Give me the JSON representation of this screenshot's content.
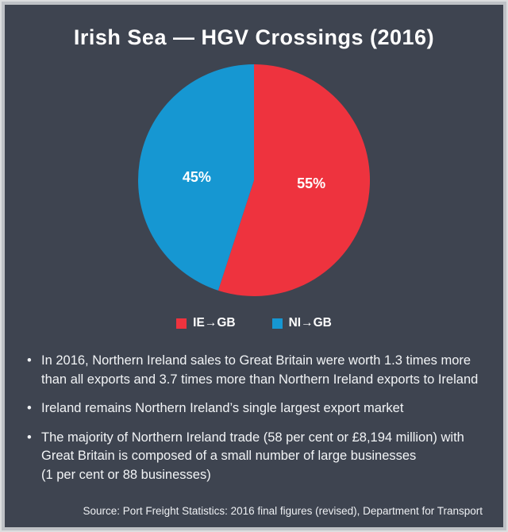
{
  "colors": {
    "background": "#3e4450",
    "frame_border": "#bfc2c6",
    "text": "#ffffff",
    "red": "#ee333e",
    "blue": "#1697d2"
  },
  "title": "Irish Sea — HGV Crossings (2016)",
  "chart_data": {
    "type": "pie",
    "title": "Irish Sea — HGV Crossings (2016)",
    "slices": [
      {
        "label": "IE→GB",
        "value": 55,
        "pct_label": "55%",
        "color": "#ee333e"
      },
      {
        "label": "NI→GB",
        "value": 45,
        "pct_label": "45%",
        "color": "#1697d2"
      }
    ],
    "start_angle_deg": 0,
    "direction": "clockwise",
    "labels_inside": true,
    "legend_position": "bottom"
  },
  "bullet_marker": "•",
  "bullets": [
    "In 2016, Northern Ireland sales to Great Britain were worth 1.3 times more\nthan all exports and 3.7 times more than Northern Ireland exports to Ireland",
    "Ireland remains Northern Ireland’s single largest export market",
    "The majority of Northern Ireland trade (58 per cent or £8,194 million) with\nGreat Britain is composed of a small number of large businesses\n(1 per cent or 88 businesses)"
  ],
  "source": "Source: Port Freight Statistics: 2016 final figures (revised), Department for Transport"
}
